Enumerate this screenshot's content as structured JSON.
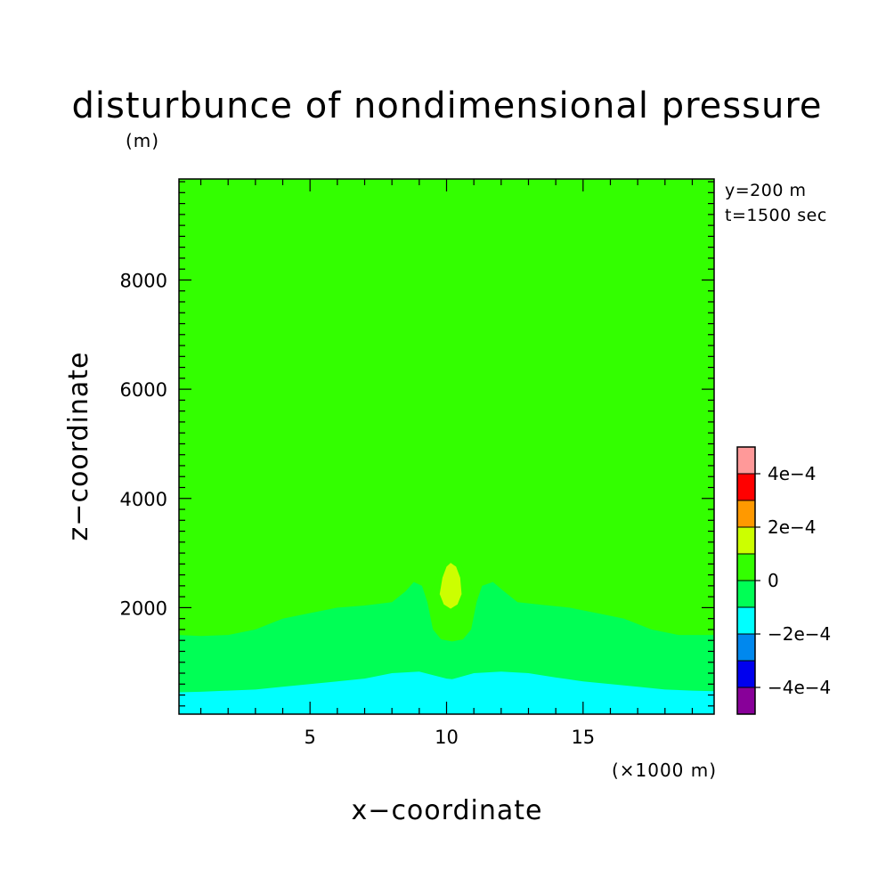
{
  "chart_data": {
    "type": "contour",
    "title": "disturbunce of nondimensional pressure",
    "xlabel": "x−coordinate",
    "ylabel": "z−coordinate",
    "x_unit": "(×1000 m)",
    "y_unit": "(m)",
    "xlim": [
      0.2,
      19.8
    ],
    "ylim": [
      50,
      9850
    ],
    "x_ticks": [
      5,
      10,
      15
    ],
    "x_tick_labels": [
      "5",
      "10",
      "15"
    ],
    "y_ticks": [
      2000,
      4000,
      6000,
      8000
    ],
    "y_tick_labels": [
      "2000",
      "4000",
      "6000",
      "8000"
    ],
    "info": [
      "y=200 m",
      "t=1500 sec"
    ],
    "background_level_color": "#33ff00",
    "regions": [
      {
        "level": "-2e-4 to 0",
        "color": "#00ff55",
        "boundary": [
          [
            0.2,
            1500
          ],
          [
            1,
            1480
          ],
          [
            2,
            1500
          ],
          [
            3,
            1600
          ],
          [
            4,
            1800
          ],
          [
            5,
            1900
          ],
          [
            6,
            2000
          ],
          [
            7,
            2040
          ],
          [
            8,
            2100
          ],
          [
            8.5,
            2300
          ],
          [
            8.8,
            2470
          ],
          [
            9.1,
            2400
          ],
          [
            9.3,
            2100
          ],
          [
            9.5,
            1900
          ],
          [
            10.2,
            1850
          ],
          [
            10.9,
            1900
          ],
          [
            11.1,
            2100
          ],
          [
            11.3,
            2400
          ],
          [
            11.7,
            2470
          ],
          [
            12.1,
            2300
          ],
          [
            12.6,
            2100
          ],
          [
            13.5,
            2050
          ],
          [
            14.5,
            2000
          ],
          [
            15.5,
            1900
          ],
          [
            16.5,
            1800
          ],
          [
            17.5,
            1600
          ],
          [
            18.5,
            1500
          ],
          [
            19.8,
            1500
          ],
          [
            19.8,
            50
          ],
          [
            0.2,
            50
          ]
        ]
      },
      {
        "level": "0 to 2e-4",
        "color": "#33ff00",
        "boundary": [
          [
            9.3,
            2100
          ],
          [
            9.5,
            2400
          ],
          [
            9.7,
            2650
          ],
          [
            9.9,
            2800
          ],
          [
            10.2,
            2850
          ],
          [
            10.5,
            2800
          ],
          [
            10.7,
            2650
          ],
          [
            10.9,
            2400
          ],
          [
            11.1,
            2100
          ],
          [
            10.9,
            1600
          ],
          [
            10.6,
            1420
          ],
          [
            10.2,
            1380
          ],
          [
            9.8,
            1420
          ],
          [
            9.5,
            1600
          ]
        ]
      },
      {
        "level": "-4e-4 to -2e-4",
        "color": "#00ffff",
        "boundary": [
          [
            0.2,
            450
          ],
          [
            1,
            460
          ],
          [
            2,
            480
          ],
          [
            3,
            500
          ],
          [
            4,
            550
          ],
          [
            5,
            600
          ],
          [
            6,
            650
          ],
          [
            7,
            700
          ],
          [
            8,
            800
          ],
          [
            9,
            830
          ],
          [
            10,
            700
          ],
          [
            10.2,
            690
          ],
          [
            11,
            800
          ],
          [
            12,
            830
          ],
          [
            13,
            800
          ],
          [
            14,
            720
          ],
          [
            15,
            650
          ],
          [
            16,
            600
          ],
          [
            17,
            550
          ],
          [
            18,
            500
          ],
          [
            19,
            480
          ],
          [
            19.8,
            470
          ],
          [
            19.8,
            50
          ],
          [
            0.2,
            50
          ]
        ]
      },
      {
        "level": "2e-4 to 4e-4",
        "color": "#ccff00",
        "boundary": [
          [
            9.75,
            2250
          ],
          [
            9.85,
            2550
          ],
          [
            10.0,
            2750
          ],
          [
            10.15,
            2820
          ],
          [
            10.35,
            2750
          ],
          [
            10.5,
            2550
          ],
          [
            10.55,
            2250
          ],
          [
            10.4,
            2060
          ],
          [
            10.15,
            1980
          ],
          [
            9.9,
            2060
          ]
        ]
      }
    ],
    "colorbar": {
      "colors": [
        "#880099",
        "#0000ee",
        "#0088ee",
        "#00ffff",
        "#00ff55",
        "#33ff00",
        "#ccff00",
        "#ff9900",
        "#ff0000",
        "#ff9999"
      ],
      "labels": [
        "−4e−4",
        "−2e−4",
        "0",
        "2e−4",
        "4e−4"
      ]
    }
  }
}
